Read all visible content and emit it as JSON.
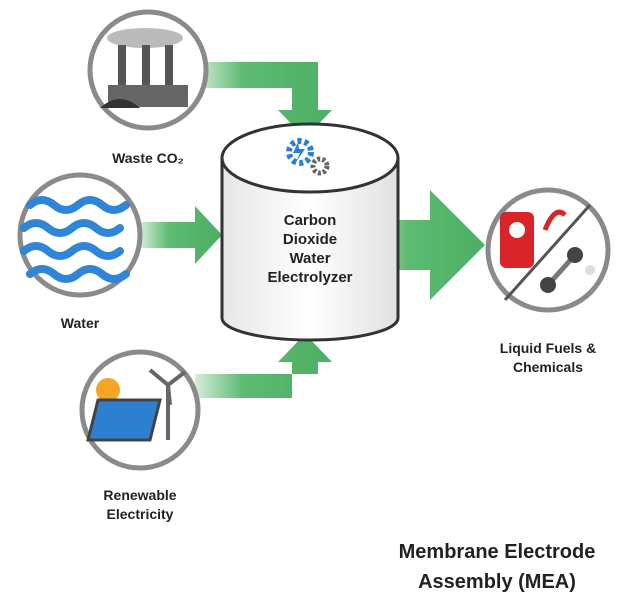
{
  "inputs": [
    {
      "label": [
        "Waste CO₂"
      ]
    },
    {
      "label": [
        "Water"
      ]
    },
    {
      "label": [
        "Renewable",
        "Electricity"
      ]
    }
  ],
  "process": {
    "label": [
      "Carbon",
      "Dioxide",
      "Water",
      "Electrolyzer"
    ]
  },
  "output": {
    "label": [
      "Liquid Fuels &",
      "Chemicals"
    ]
  },
  "caption": [
    "Membrane Electrode",
    "Assembly (MEA)"
  ]
}
